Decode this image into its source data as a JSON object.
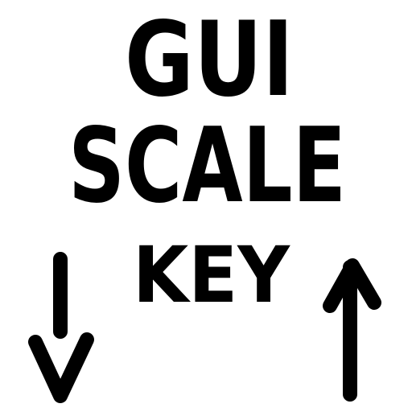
{
  "lines": [
    "GUI",
    "SCALE",
    "KEY"
  ]
}
